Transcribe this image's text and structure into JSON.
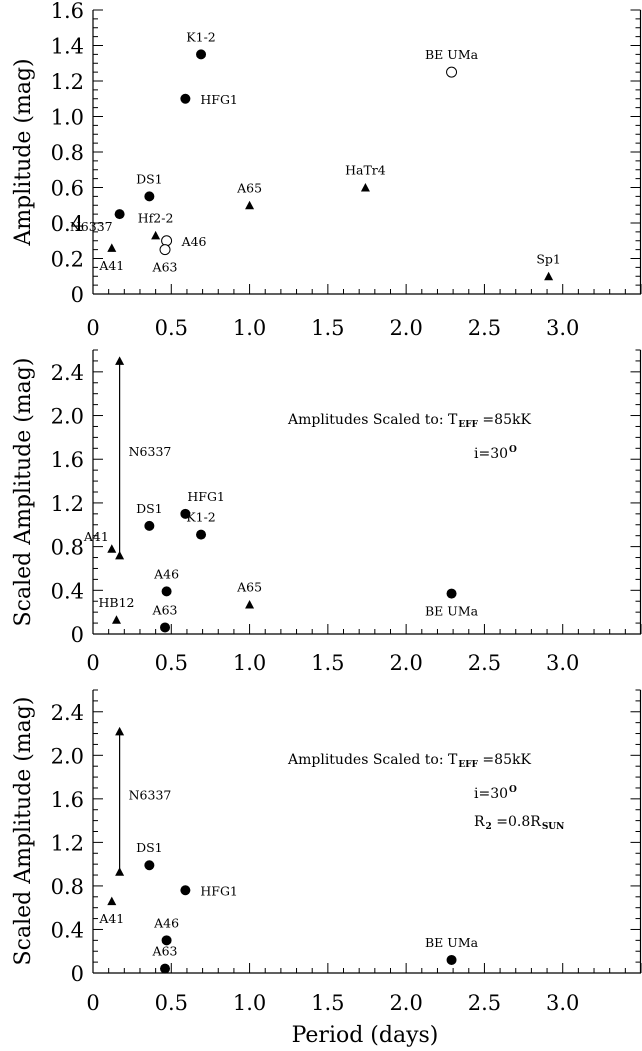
{
  "figure": {
    "xlabel": "Period (days)"
  },
  "chart_data": [
    {
      "type": "scatter",
      "title": "",
      "xlabel": "",
      "ylabel": "Amplitude (mag)",
      "xlim": [
        0,
        3.5
      ],
      "ylim": [
        0,
        1.6
      ],
      "x_ticks": [
        0,
        0.5,
        1.0,
        1.5,
        2.0,
        2.5,
        3.0
      ],
      "x_tick_labels": [
        "0",
        "0.5",
        "1.0",
        "1.5",
        "2.0",
        "2.5",
        "3.0"
      ],
      "y_ticks": [
        0,
        0.2,
        0.4,
        0.6,
        0.8,
        1.0,
        1.2,
        1.4,
        1.6
      ],
      "y_tick_labels": [
        "0",
        "0.2",
        "0.4",
        "0.6",
        "0.8",
        "1.0",
        "1.2",
        "1.4",
        "1.6"
      ],
      "grid": false,
      "annotations": [],
      "points": [
        {
          "label": "K1-2",
          "x": 0.69,
          "y": 1.35,
          "marker": "filled-circle",
          "label_pos": "above"
        },
        {
          "label": "HFG1",
          "x": 0.59,
          "y": 1.1,
          "marker": "filled-circle",
          "label_pos": "right"
        },
        {
          "label": "BE UMa",
          "x": 2.29,
          "y": 1.25,
          "marker": "open-circle",
          "label_pos": "above"
        },
        {
          "label": "DS1",
          "x": 0.36,
          "y": 0.55,
          "marker": "filled-circle",
          "label_pos": "above"
        },
        {
          "label": "N6337",
          "x": 0.17,
          "y": 0.45,
          "marker": "filled-circle",
          "label_pos": "below-left"
        },
        {
          "label": "A65",
          "x": 1.0,
          "y": 0.5,
          "marker": "triangle",
          "label_pos": "above"
        },
        {
          "label": "HaTr4",
          "x": 1.74,
          "y": 0.6,
          "marker": "triangle",
          "label_pos": "above"
        },
        {
          "label": "Hf2-2",
          "x": 0.4,
          "y": 0.33,
          "marker": "triangle",
          "label_pos": "above"
        },
        {
          "label": "A46",
          "x": 0.47,
          "y": 0.3,
          "marker": "open-circle",
          "label_pos": "right"
        },
        {
          "label": "A63",
          "x": 0.46,
          "y": 0.25,
          "marker": "open-circle",
          "label_pos": "below"
        },
        {
          "label": "A41",
          "x": 0.12,
          "y": 0.26,
          "marker": "triangle",
          "label_pos": "below"
        },
        {
          "label": "Sp1",
          "x": 2.91,
          "y": 0.1,
          "marker": "triangle",
          "label_pos": "above"
        }
      ],
      "ranges": []
    },
    {
      "type": "scatter",
      "title": "",
      "xlabel": "",
      "ylabel": "Scaled Amplitude (mag)",
      "xlim": [
        0,
        3.5
      ],
      "ylim": [
        0,
        2.6
      ],
      "x_ticks": [
        0,
        0.5,
        1.0,
        1.5,
        2.0,
        2.5,
        3.0
      ],
      "x_tick_labels": [
        "0",
        "0.5",
        "1.0",
        "1.5",
        "2.0",
        "2.5",
        "3.0"
      ],
      "y_ticks": [
        0,
        0.4,
        0.8,
        1.2,
        1.6,
        2.0,
        2.4
      ],
      "y_tick_labels": [
        "0",
        "0.4",
        "0.8",
        "1.2",
        "1.6",
        "2.0",
        "2.4"
      ],
      "grid": false,
      "annotations": [
        {
          "parts": [
            "Amplitudes Scaled to: T",
            "EFF",
            " =85kK"
          ],
          "pos": "upper-right"
        },
        {
          "parts": [
            "i=30",
            "O",
            ""
          ],
          "pos": "upper-right"
        }
      ],
      "points": [
        {
          "label": "A41",
          "x": 0.12,
          "y": 0.78,
          "marker": "triangle",
          "label_pos": "left-above"
        },
        {
          "label": "HB12",
          "x": 0.15,
          "y": 0.13,
          "marker": "triangle",
          "label_pos": "above"
        },
        {
          "label": "DS1",
          "x": 0.36,
          "y": 0.99,
          "marker": "filled-circle",
          "label_pos": "above"
        },
        {
          "label": "HFG1",
          "x": 0.59,
          "y": 1.1,
          "marker": "filled-circle",
          "label_pos": "above-right"
        },
        {
          "label": "K1-2",
          "x": 0.69,
          "y": 0.91,
          "marker": "filled-circle",
          "label_pos": "above"
        },
        {
          "label": "A46",
          "x": 0.47,
          "y": 0.39,
          "marker": "filled-circle",
          "label_pos": "above"
        },
        {
          "label": "A63",
          "x": 0.46,
          "y": 0.06,
          "marker": "filled-circle",
          "label_pos": "above"
        },
        {
          "label": "A65",
          "x": 1.0,
          "y": 0.27,
          "marker": "triangle",
          "label_pos": "above"
        },
        {
          "label": "BE UMa",
          "x": 2.29,
          "y": 0.37,
          "marker": "filled-circle",
          "label_pos": "below"
        }
      ],
      "ranges": [
        {
          "label": "N6337",
          "x": 0.17,
          "y_low": 0.72,
          "y_high": 2.5
        }
      ]
    },
    {
      "type": "scatter",
      "title": "",
      "xlabel": "Period (days)",
      "ylabel": "Scaled Amplitude (mag)",
      "xlim": [
        0,
        3.5
      ],
      "ylim": [
        0,
        2.6
      ],
      "x_ticks": [
        0,
        0.5,
        1.0,
        1.5,
        2.0,
        2.5,
        3.0
      ],
      "x_tick_labels": [
        "0",
        "0.5",
        "1.0",
        "1.5",
        "2.0",
        "2.5",
        "3.0"
      ],
      "y_ticks": [
        0,
        0.4,
        0.8,
        1.2,
        1.6,
        2.0,
        2.4
      ],
      "y_tick_labels": [
        "0",
        "0.4",
        "0.8",
        "1.2",
        "1.6",
        "2.0",
        "2.4"
      ],
      "grid": false,
      "annotations": [
        {
          "parts": [
            "Amplitudes Scaled to: T",
            "EFF",
            " =85kK"
          ],
          "pos": "upper-right"
        },
        {
          "parts": [
            "i=30",
            "O",
            ""
          ],
          "pos": "upper-right"
        },
        {
          "parts": [
            "R",
            "2",
            " =0.8R",
            "SUN",
            ""
          ],
          "pos": "upper-right"
        }
      ],
      "points": [
        {
          "label": "A41",
          "x": 0.12,
          "y": 0.66,
          "marker": "triangle",
          "label_pos": "below"
        },
        {
          "label": "DS1",
          "x": 0.36,
          "y": 0.99,
          "marker": "filled-circle",
          "label_pos": "above"
        },
        {
          "label": "HFG1",
          "x": 0.59,
          "y": 0.76,
          "marker": "filled-circle",
          "label_pos": "right"
        },
        {
          "label": "A46",
          "x": 0.47,
          "y": 0.3,
          "marker": "filled-circle",
          "label_pos": "above"
        },
        {
          "label": "A63",
          "x": 0.46,
          "y": 0.04,
          "marker": "filled-circle",
          "label_pos": "above"
        },
        {
          "label": "BE UMa",
          "x": 2.29,
          "y": 0.12,
          "marker": "filled-circle",
          "label_pos": "above"
        }
      ],
      "ranges": [
        {
          "label": "N6337",
          "x": 0.17,
          "y_low": 0.93,
          "y_high": 2.22
        }
      ]
    }
  ]
}
